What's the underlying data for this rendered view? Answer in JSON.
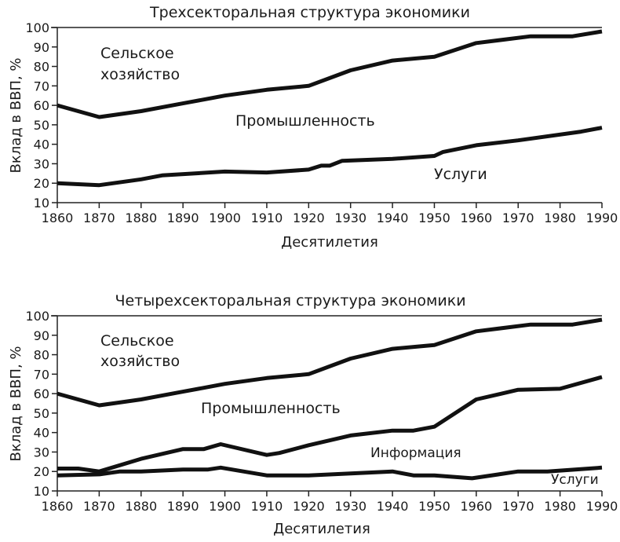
{
  "chart_data": [
    {
      "type": "area",
      "stacked": true,
      "title": "Трехсекторальная структура экономики",
      "xlabel": "Десятилетия",
      "ylabel": "Вклад в ВВП, %",
      "xlim": [
        1860,
        1990
      ],
      "ylim": [
        10,
        100
      ],
      "x_ticks": [
        1860,
        1870,
        1880,
        1890,
        1900,
        1910,
        1920,
        1930,
        1940,
        1950,
        1960,
        1970,
        1980,
        1990
      ],
      "y_ticks": [
        10,
        20,
        30,
        40,
        50,
        60,
        70,
        80,
        90,
        100
      ],
      "grid": false,
      "regions_top_to_bottom": [
        "Сельское хозяйство",
        "Промышленность",
        "Услуги"
      ],
      "boundaries": [
        {
          "name": "Сельское хозяйство / Промышленность",
          "points": [
            [
              1860,
              60
            ],
            [
              1870,
              54
            ],
            [
              1880,
              57
            ],
            [
              1890,
              61
            ],
            [
              1895,
              63
            ],
            [
              1900,
              65
            ],
            [
              1910,
              68
            ],
            [
              1920,
              70
            ],
            [
              1930,
              78
            ],
            [
              1940,
              83
            ],
            [
              1950,
              85
            ],
            [
              1960,
              92
            ],
            [
              1973,
              95.5
            ],
            [
              1983,
              95.5
            ],
            [
              1990,
              98
            ]
          ]
        },
        {
          "name": "Промышленность / Услуги",
          "points": [
            [
              1860,
              20
            ],
            [
              1870,
              19
            ],
            [
              1880,
              22
            ],
            [
              1885,
              24
            ],
            [
              1900,
              26
            ],
            [
              1910,
              25.5
            ],
            [
              1920,
              27
            ],
            [
              1923,
              29
            ],
            [
              1925,
              29
            ],
            [
              1928,
              31.5
            ],
            [
              1940,
              32.5
            ],
            [
              1950,
              34
            ],
            [
              1952,
              36
            ],
            [
              1960,
              39.5
            ],
            [
              1970,
              42
            ],
            [
              1985,
              46.5
            ],
            [
              1990,
              48.5
            ]
          ]
        }
      ]
    },
    {
      "type": "area",
      "stacked": true,
      "title": "Четырехсекторальная структура экономики",
      "xlabel": "Десятилетия",
      "ylabel": "Вклад в ВВП, %",
      "xlim": [
        1860,
        1990
      ],
      "ylim": [
        10,
        100
      ],
      "x_ticks": [
        1860,
        1870,
        1880,
        1890,
        1900,
        1910,
        1920,
        1930,
        1940,
        1950,
        1960,
        1970,
        1980,
        1990
      ],
      "y_ticks": [
        10,
        20,
        30,
        40,
        50,
        60,
        70,
        80,
        90,
        100
      ],
      "grid": false,
      "regions_top_to_bottom": [
        "Сельское хозяйство",
        "Промышленность",
        "Информация",
        "Услуги"
      ],
      "boundaries": [
        {
          "name": "Сельское хозяйство / Промышленность",
          "points": [
            [
              1860,
              60
            ],
            [
              1870,
              54
            ],
            [
              1880,
              57
            ],
            [
              1890,
              61
            ],
            [
              1895,
              63
            ],
            [
              1900,
              65
            ],
            [
              1910,
              68
            ],
            [
              1920,
              70
            ],
            [
              1930,
              78
            ],
            [
              1940,
              83
            ],
            [
              1950,
              85
            ],
            [
              1960,
              92
            ],
            [
              1973,
              95.5
            ],
            [
              1983,
              95.5
            ],
            [
              1990,
              98
            ]
          ]
        },
        {
          "name": "Промышленность / Информация",
          "points": [
            [
              1860,
              21.5
            ],
            [
              1865,
              21.5
            ],
            [
              1870,
              20
            ],
            [
              1880,
              26.5
            ],
            [
              1890,
              31.5
            ],
            [
              1895,
              31.5
            ],
            [
              1899,
              34
            ],
            [
              1910,
              28.5
            ],
            [
              1913,
              29.5
            ],
            [
              1920,
              33.5
            ],
            [
              1930,
              38.5
            ],
            [
              1940,
              41
            ],
            [
              1945,
              41
            ],
            [
              1950,
              43
            ],
            [
              1960,
              57
            ],
            [
              1970,
              62
            ],
            [
              1980,
              62.5
            ],
            [
              1990,
              68.5
            ]
          ]
        },
        {
          "name": "Информация / Услуги",
          "points": [
            [
              1860,
              18
            ],
            [
              1870,
              18.5
            ],
            [
              1875,
              20
            ],
            [
              1880,
              20
            ],
            [
              1890,
              21
            ],
            [
              1896,
              21
            ],
            [
              1899,
              22
            ],
            [
              1910,
              18
            ],
            [
              1920,
              18
            ],
            [
              1940,
              20
            ],
            [
              1945,
              18
            ],
            [
              1950,
              18
            ],
            [
              1959,
              16.5
            ],
            [
              1970,
              20
            ],
            [
              1977,
              20
            ],
            [
              1990,
              22
            ]
          ]
        }
      ]
    }
  ],
  "charts": [
    {
      "title": "Трехсекторальная структура экономики",
      "xlabel": "Десятилетия",
      "ylabel": "Вклад в ВВП, %",
      "labels": {
        "agriculture_1": "Сельское",
        "agriculture_2": "хозяйство",
        "industry": "Промышленность",
        "services": "Услуги"
      }
    },
    {
      "title": "Четырехсекторальная структура экономики",
      "xlabel": "Десятилетия",
      "ylabel": "Вклад в ВВП, %",
      "labels": {
        "agriculture_1": "Сельское",
        "agriculture_2": "хозяйство",
        "industry": "Промышленность",
        "information": "Информация",
        "services": "Услуги"
      }
    }
  ],
  "style": {
    "line_color": "#111111",
    "axis_color": "#222222",
    "text_color": "#1a1a1a"
  }
}
